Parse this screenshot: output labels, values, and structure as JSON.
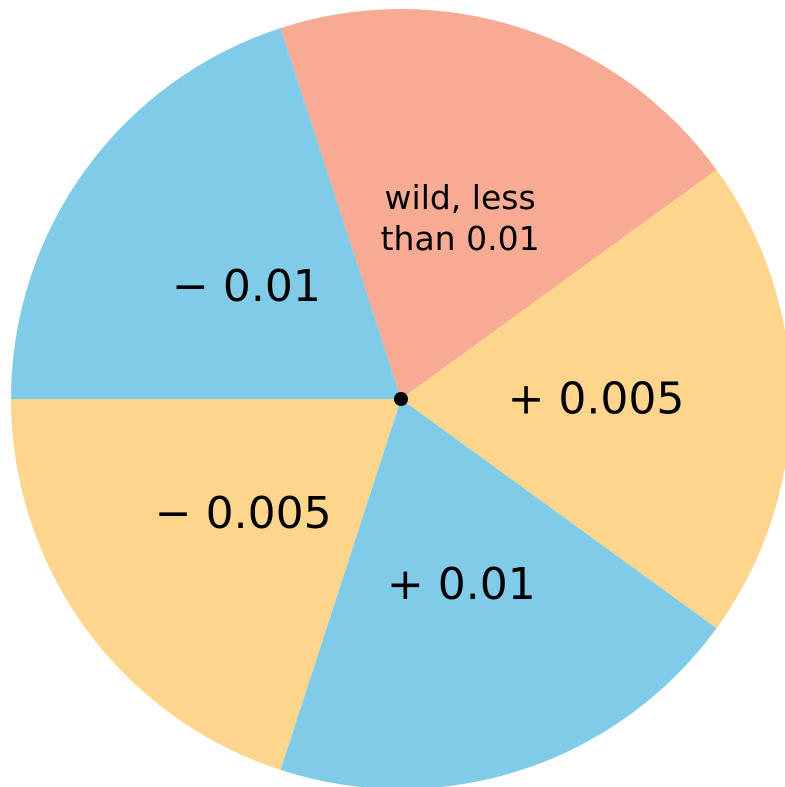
{
  "colors": {
    "blue": "#7fcbe8",
    "orange": "#fdd58d",
    "salmon": "#f7ab95",
    "center_dot": "#000000"
  },
  "slices": [
    {
      "key": "wild",
      "weight": 1,
      "color": "salmon",
      "lines": [
        "wild, less",
        "than 0.01"
      ],
      "style": "small"
    },
    {
      "key": "plus_0_005",
      "weight": 1,
      "color": "orange",
      "lines": [
        "+ 0.005"
      ],
      "style": "big"
    },
    {
      "key": "plus_0_01",
      "weight": 1,
      "color": "blue",
      "lines": [
        "+ 0.01"
      ],
      "style": "big"
    },
    {
      "key": "minus_0_005",
      "weight": 1,
      "color": "orange",
      "lines": [
        "− 0.005"
      ],
      "style": "big"
    },
    {
      "key": "minus_0_01",
      "weight": 1,
      "color": "blue",
      "lines": [
        "− 0.01"
      ],
      "style": "big"
    }
  ]
}
